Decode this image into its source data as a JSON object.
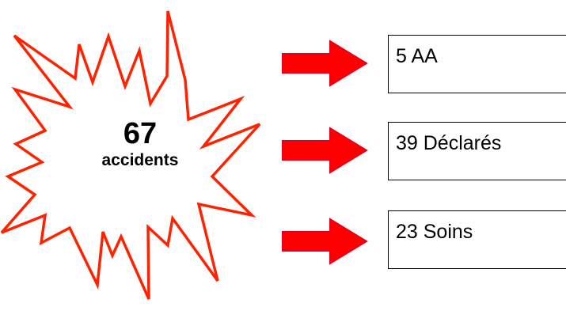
{
  "burst": {
    "number": "67",
    "label": "accidents"
  },
  "colors": {
    "burst_stroke": "#ff2200",
    "arrow_fill": "#ff0000",
    "arrow_stroke": "#e8001a",
    "box_border": "#000000"
  },
  "boxes": [
    {
      "label": "5 AA"
    },
    {
      "label": "39 Déclarés"
    },
    {
      "label": "23 Soins"
    }
  ]
}
